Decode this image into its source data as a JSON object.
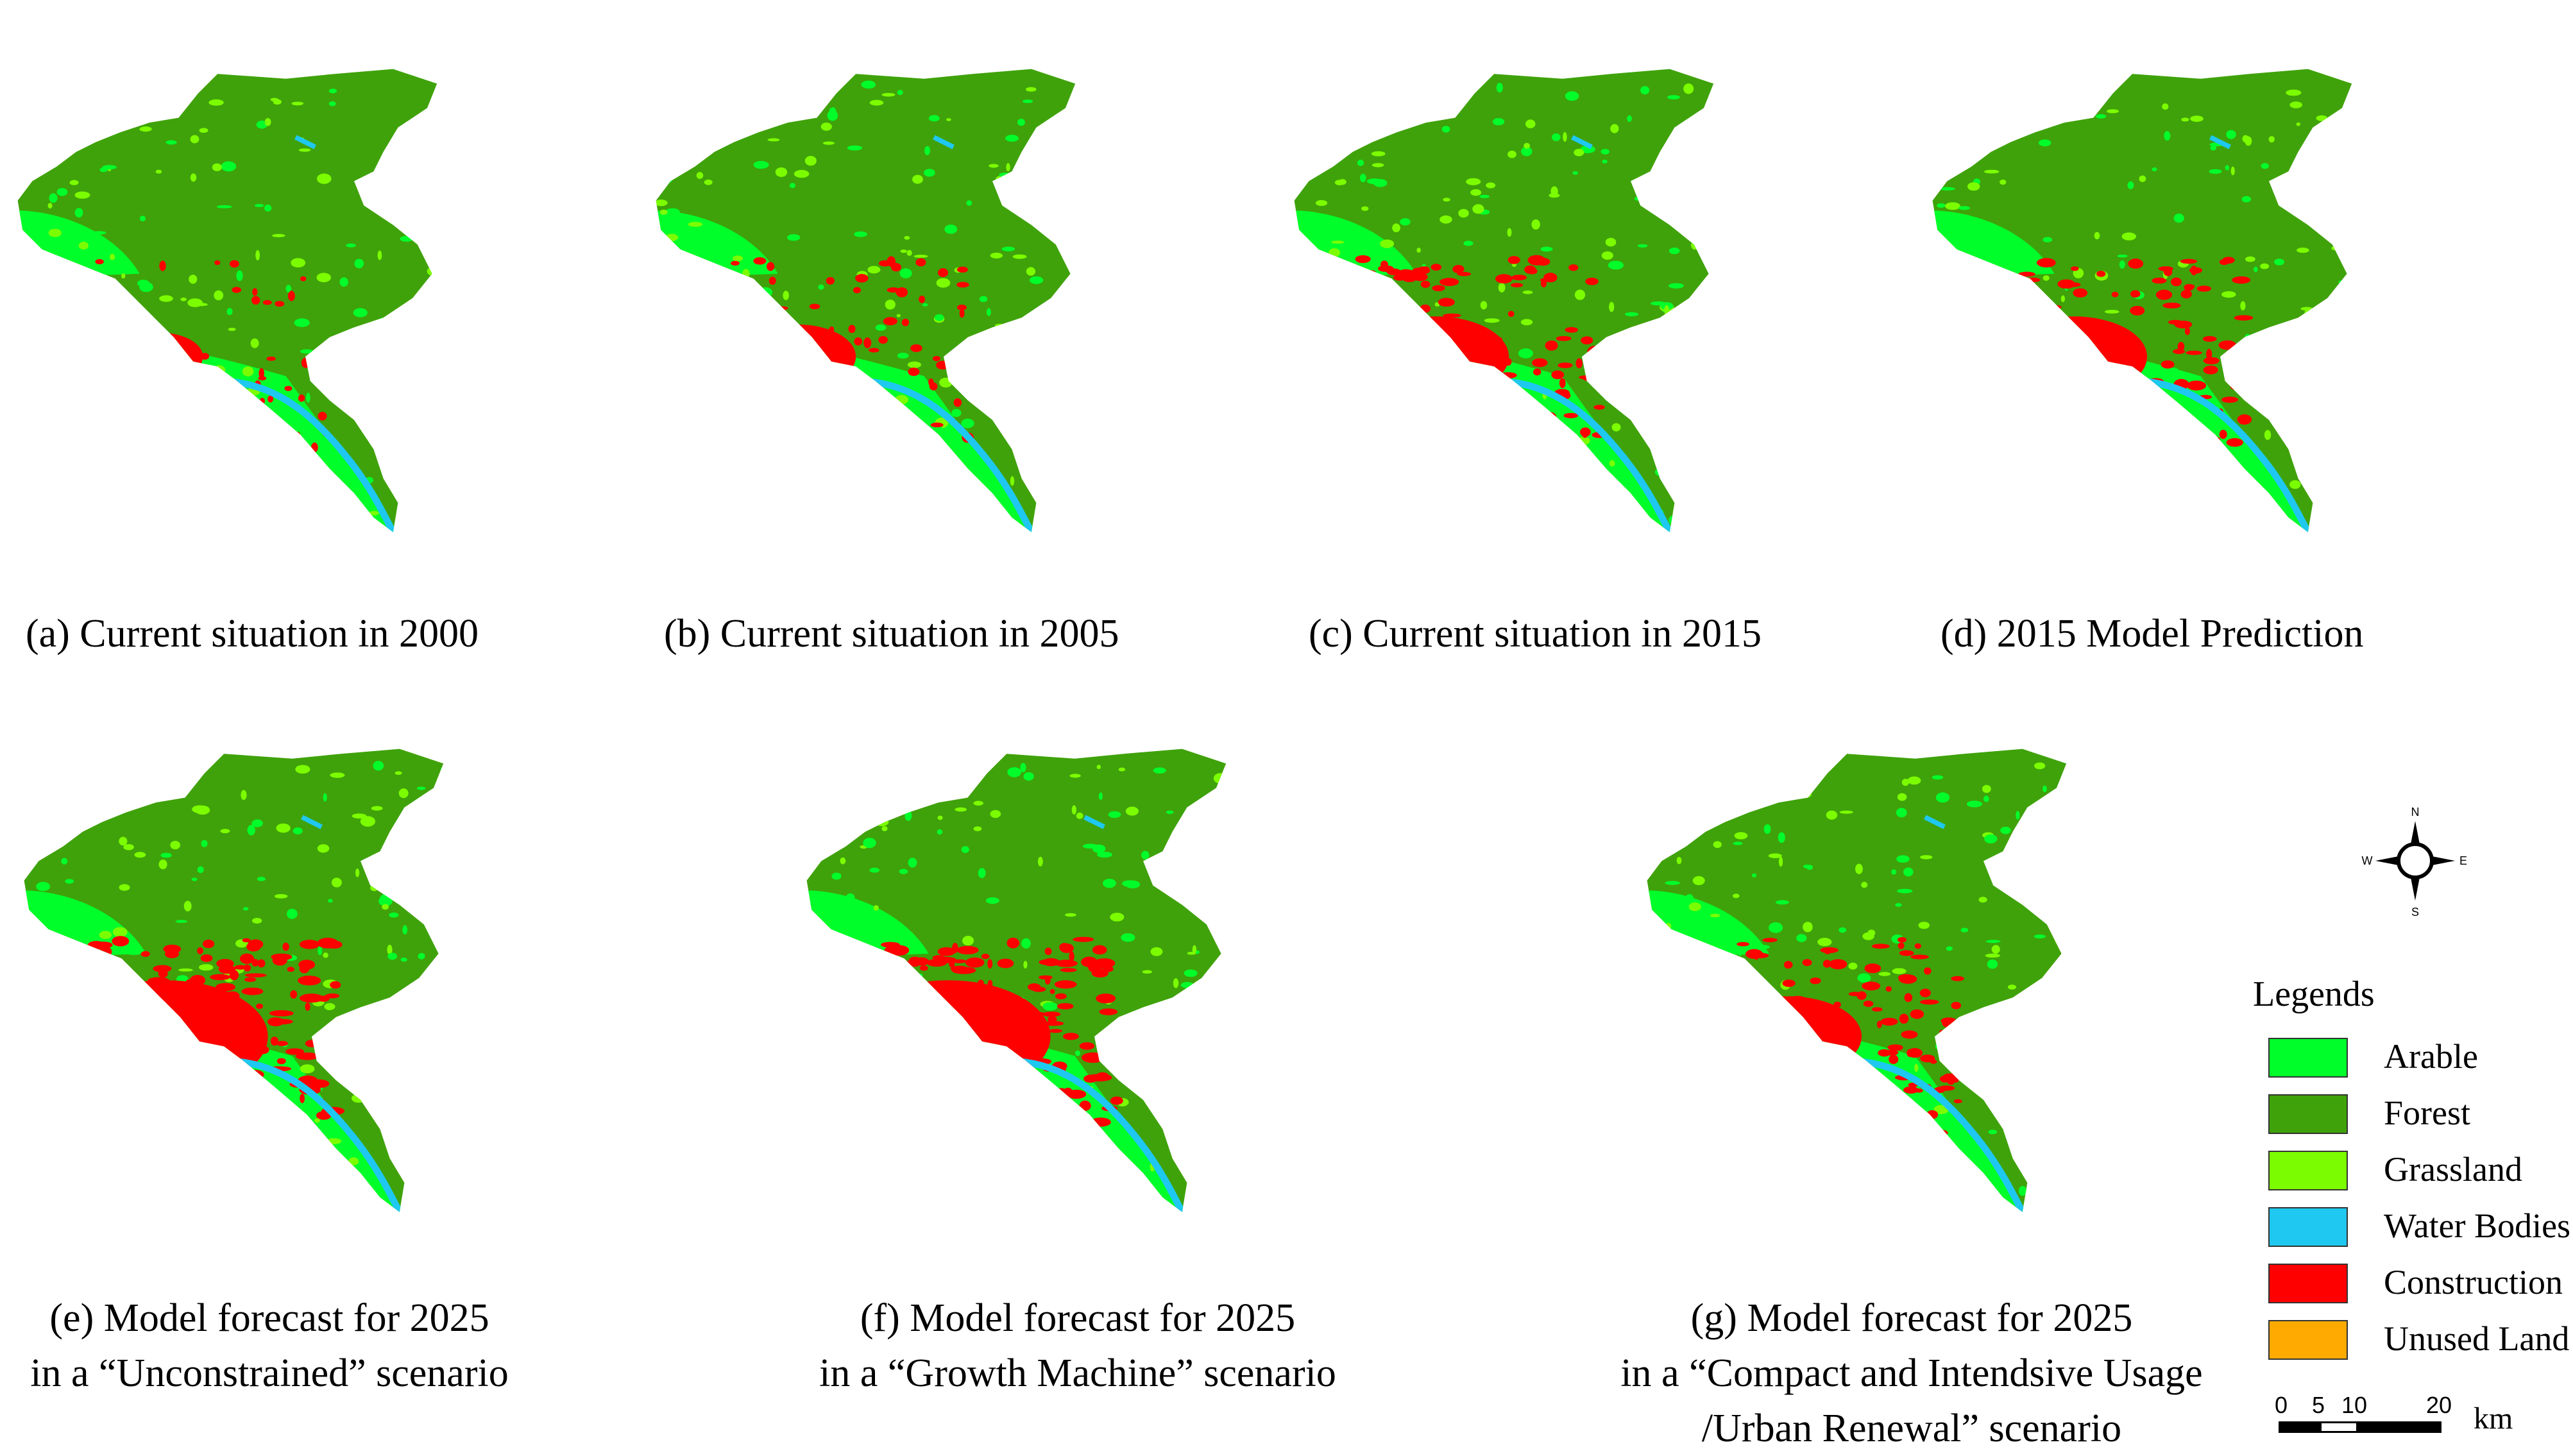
{
  "colors": {
    "arable": "#00FF2A",
    "forest": "#3FA20A",
    "grassland": "#7CFC00",
    "water": "#1EC8F0",
    "construction": "#FF0000",
    "unused": "#FFAA00"
  },
  "panels": [
    {
      "id": "a",
      "lines": [
        "(a) Current situation in 2000"
      ],
      "construction_level": 1
    },
    {
      "id": "b",
      "lines": [
        "(b) Current situation in 2005"
      ],
      "construction_level": 2
    },
    {
      "id": "c",
      "lines": [
        "(c) Current situation in 2015"
      ],
      "construction_level": 3
    },
    {
      "id": "d",
      "lines": [
        "(d) 2015 Model Prediction"
      ],
      "construction_level": 3
    },
    {
      "id": "e",
      "lines": [
        "(e) Model forecast for 2025",
        "in a “Unconstrained” scenario"
      ],
      "construction_level": 4
    },
    {
      "id": "f",
      "lines": [
        "(f) Model forecast for 2025",
        "in a “Growth Machine” scenario"
      ],
      "construction_level": 4
    },
    {
      "id": "g",
      "lines": [
        "(g) Model forecast for 2025",
        "in a “Compact and Intendsive Usage",
        "/Urban Renewal” scenario"
      ],
      "construction_level": 3
    }
  ],
  "legend": {
    "title": "Legends",
    "items": [
      {
        "label": "Arable",
        "color": "#00FF2A"
      },
      {
        "label": "Forest",
        "color": "#3FA20A"
      },
      {
        "label": "Grassland",
        "color": "#7CFC00"
      },
      {
        "label": "Water Bodies",
        "color": "#1EC8F0"
      },
      {
        "label": "Construction",
        "color": "#FF0000"
      },
      {
        "label": "Unused Land",
        "color": "#FFAA00"
      }
    ]
  },
  "compass": {
    "n": "N",
    "s": "S",
    "e": "E",
    "w": "W",
    "icon": "north-arrow-compass-icon"
  },
  "scale": {
    "ticks": [
      "0",
      "5",
      "10",
      "20"
    ],
    "unit": "km"
  }
}
